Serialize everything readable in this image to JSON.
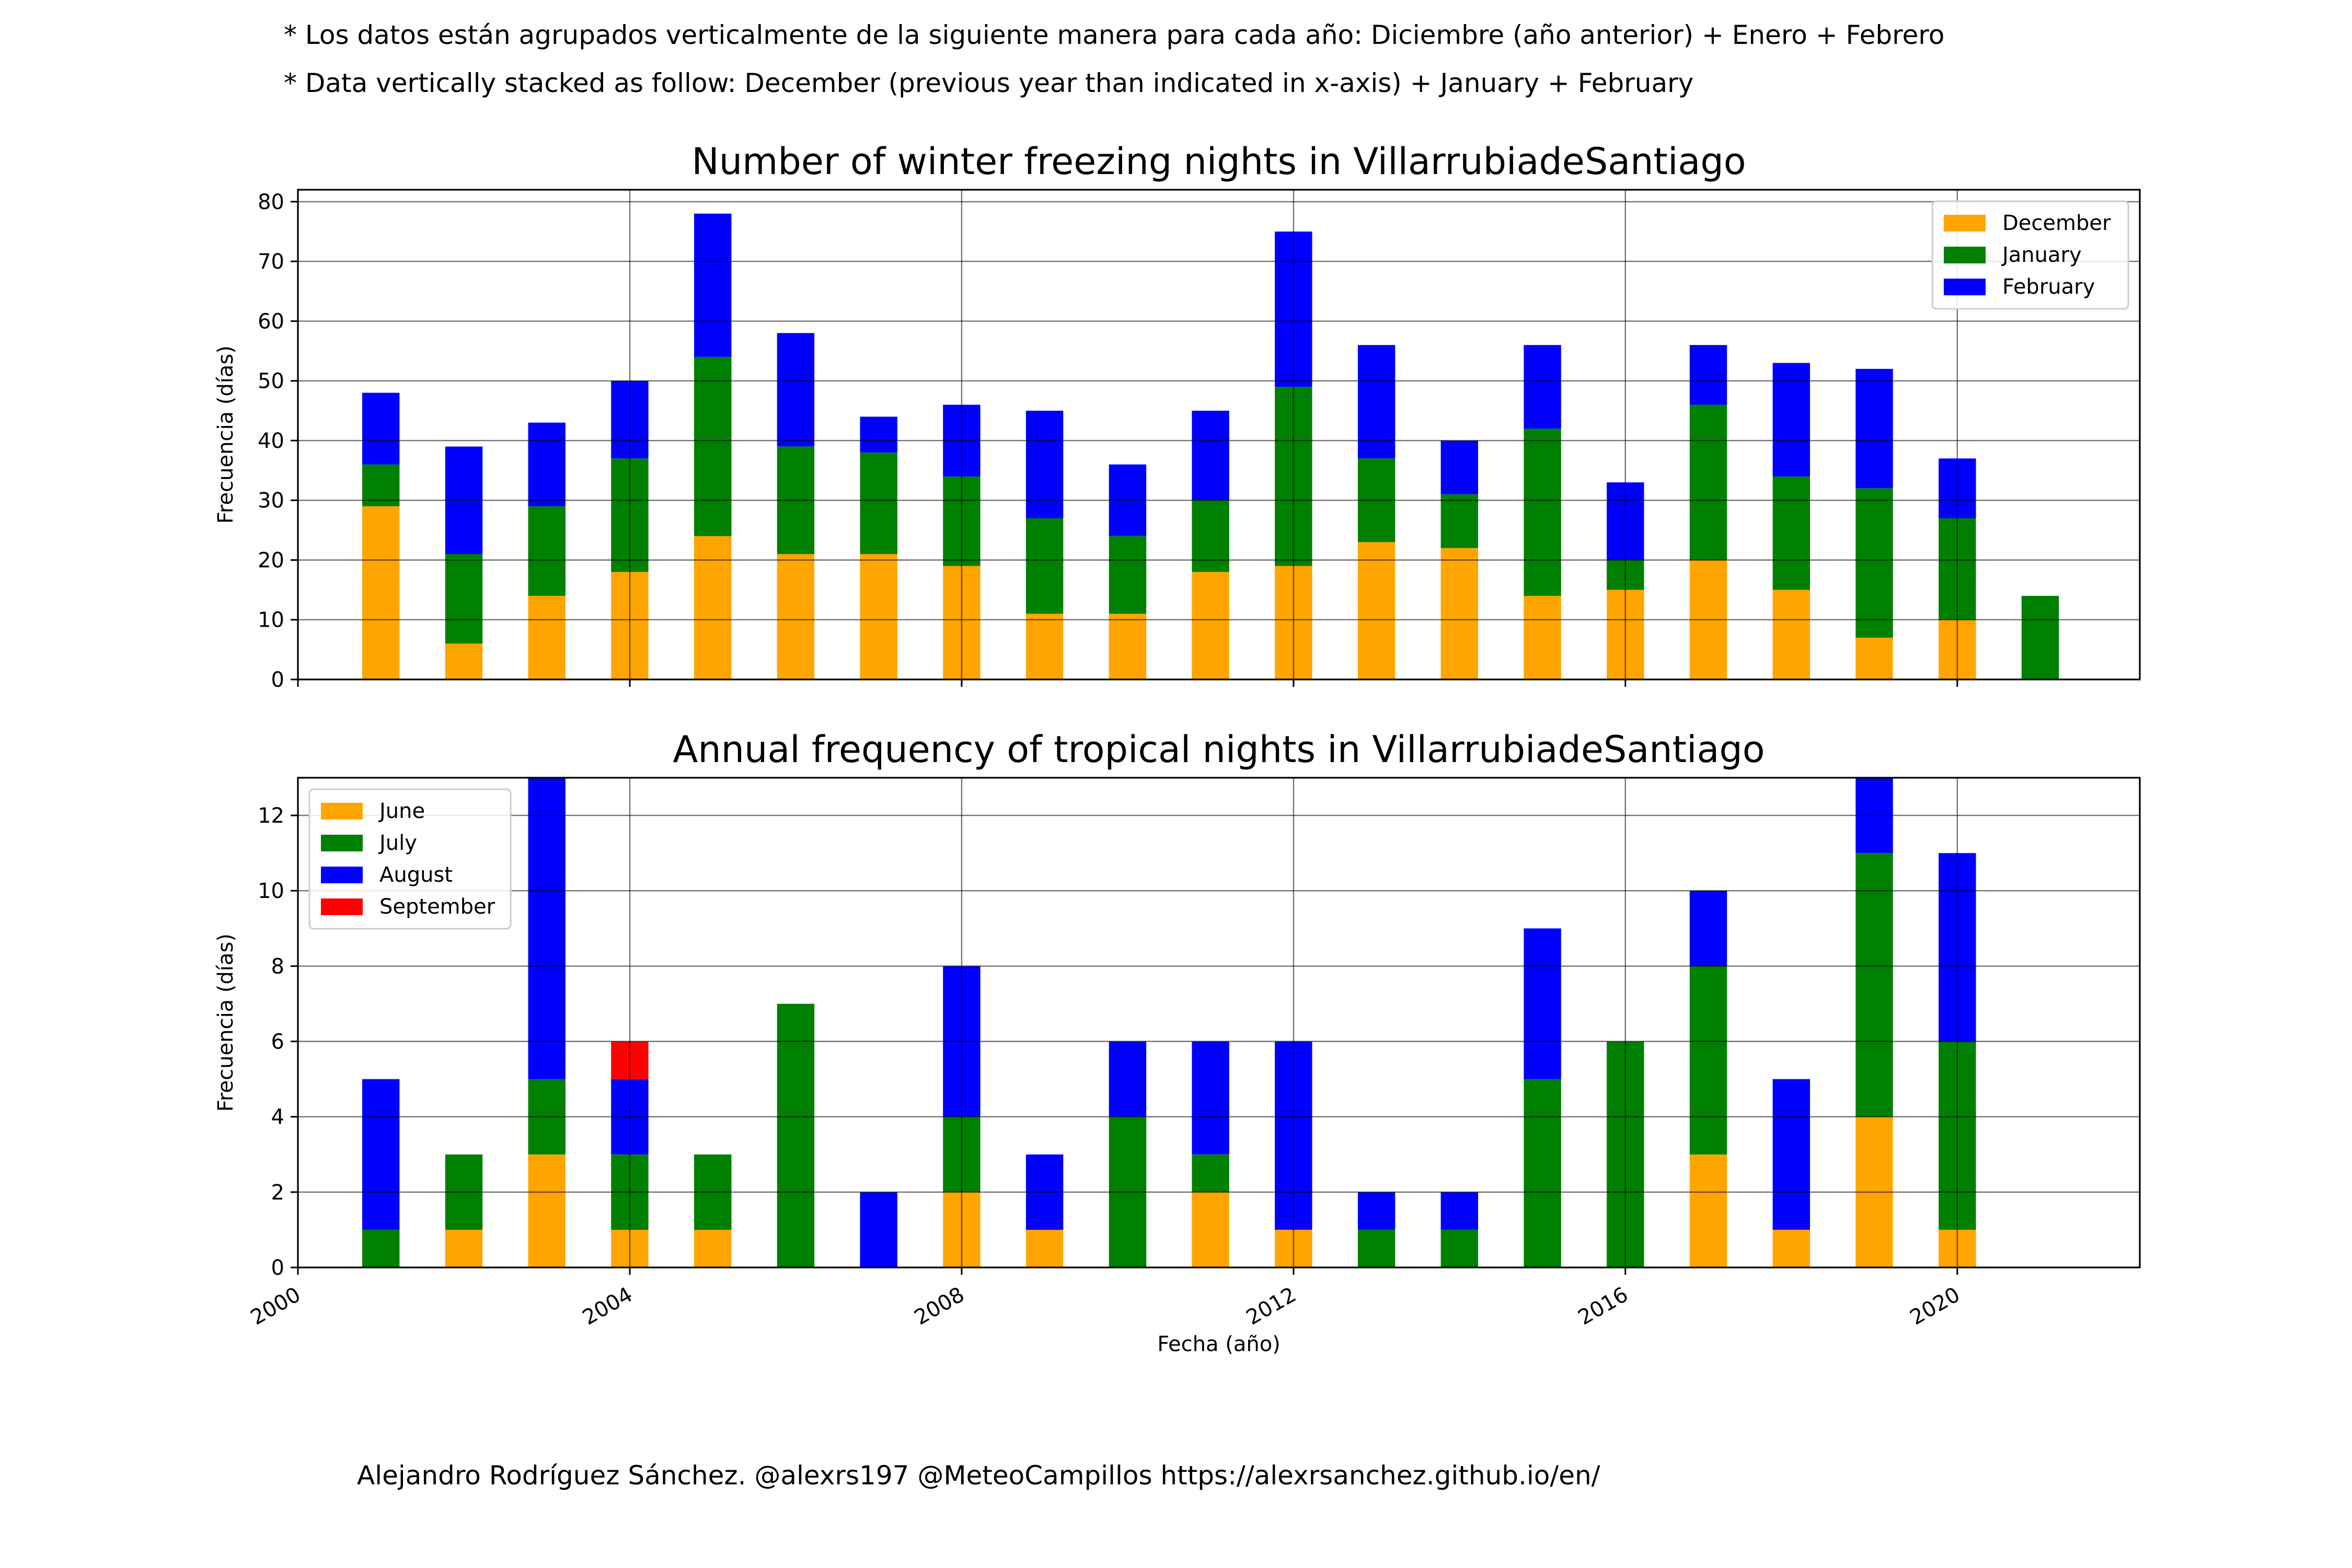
{
  "notes": {
    "line1": "* Los datos están agrupados verticalmente de la siguiente manera para cada año: Diciembre (año anterior) + Enero  + Febrero",
    "line2": "* Data vertically stacked as follow: December (previous year than indicated in x-axis) + January  + February"
  },
  "footer": {
    "credit": "Alejandro Rodríguez Sánchez. @alexrs197 @MeteoCampillos   https://alexrsanchez.github.io/en/"
  },
  "chart_data": [
    {
      "type": "bar",
      "stacked": true,
      "title": "Number of winter freezing nights in VillarrubiadeSantiago",
      "ylabel": "Frecuencia (días)",
      "xlabel": "",
      "ylim": [
        0,
        82
      ],
      "yticks": [
        0,
        10,
        20,
        30,
        40,
        50,
        60,
        70,
        80
      ],
      "xlim": [
        2000,
        2022.2
      ],
      "xticks": [
        2000,
        2004,
        2008,
        2012,
        2016,
        2020
      ],
      "show_xticklabels": false,
      "grid": true,
      "legend_position": "top-right",
      "categories": [
        2001,
        2002,
        2003,
        2004,
        2005,
        2006,
        2007,
        2008,
        2009,
        2010,
        2011,
        2012,
        2013,
        2014,
        2015,
        2016,
        2017,
        2018,
        2019,
        2020,
        2021
      ],
      "series": [
        {
          "name": "December",
          "color": "#ffa500",
          "values": [
            29,
            6,
            14,
            18,
            24,
            21,
            21,
            19,
            11,
            11,
            18,
            19,
            23,
            22,
            14,
            15,
            20,
            15,
            7,
            10,
            0
          ]
        },
        {
          "name": "January",
          "color": "#008000",
          "values": [
            7,
            15,
            15,
            19,
            30,
            18,
            17,
            15,
            16,
            13,
            12,
            30,
            14,
            9,
            28,
            5,
            26,
            19,
            25,
            17,
            14
          ]
        },
        {
          "name": "February",
          "color": "#0000ff",
          "values": [
            12,
            18,
            14,
            13,
            24,
            19,
            6,
            12,
            18,
            12,
            15,
            26,
            19,
            9,
            14,
            13,
            10,
            19,
            20,
            10,
            0
          ]
        }
      ]
    },
    {
      "type": "bar",
      "stacked": true,
      "title": "Annual frequency of tropical nights in VillarrubiadeSantiago",
      "ylabel": "Frecuencia (días)",
      "xlabel": "Fecha (año)",
      "ylim": [
        0,
        13
      ],
      "yticks": [
        0,
        2,
        4,
        6,
        8,
        10,
        12
      ],
      "xlim": [
        2000,
        2022.2
      ],
      "xticks": [
        2000,
        2004,
        2008,
        2012,
        2016,
        2020
      ],
      "show_xticklabels": true,
      "grid": true,
      "legend_position": "top-left",
      "categories": [
        2001,
        2002,
        2003,
        2004,
        2005,
        2006,
        2007,
        2008,
        2009,
        2010,
        2011,
        2012,
        2013,
        2014,
        2015,
        2016,
        2017,
        2018,
        2019,
        2020
      ],
      "series": [
        {
          "name": "June",
          "color": "#ffa500",
          "values": [
            0,
            1,
            3,
            1,
            1,
            0,
            0,
            2,
            1,
            0,
            2,
            1,
            0,
            0,
            0,
            0,
            3,
            1,
            4,
            1
          ]
        },
        {
          "name": "July",
          "color": "#008000",
          "values": [
            1,
            2,
            2,
            2,
            2,
            7,
            0,
            2,
            0,
            4,
            1,
            0,
            1,
            1,
            5,
            6,
            5,
            0,
            7,
            5
          ]
        },
        {
          "name": "August",
          "color": "#0000ff",
          "values": [
            4,
            0,
            8,
            2,
            0,
            0,
            2,
            4,
            2,
            2,
            3,
            5,
            1,
            1,
            4,
            0,
            2,
            4,
            2,
            5
          ]
        },
        {
          "name": "September",
          "color": "#ff0000",
          "values": [
            0,
            0,
            0,
            1,
            0,
            0,
            0,
            0,
            0,
            0,
            0,
            0,
            0,
            0,
            0,
            0,
            0,
            0,
            0,
            0
          ]
        }
      ]
    }
  ]
}
